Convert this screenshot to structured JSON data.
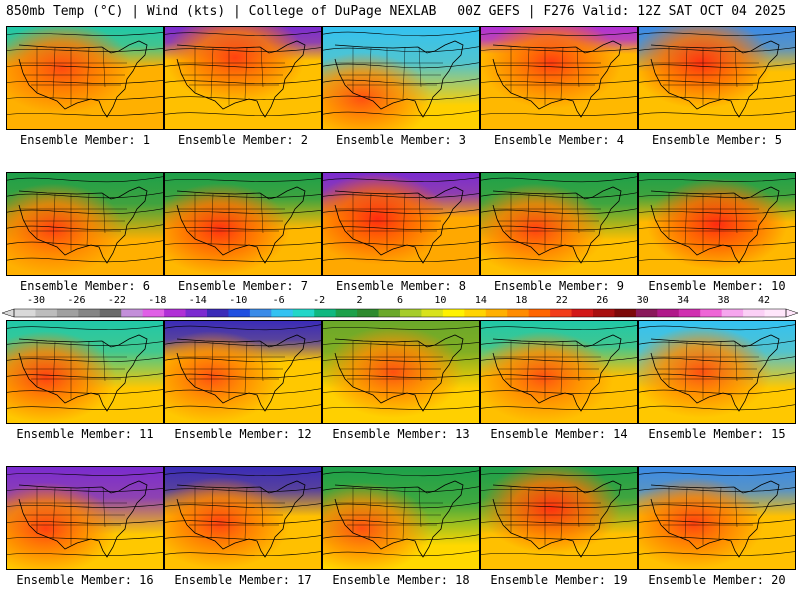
{
  "header": {
    "left": "850mb Temp (°C) | Wind (kts) | College of DuPage NEXLAB",
    "right": "00Z GEFS | F276 Valid: 12Z SAT OCT 04 2025"
  },
  "colorbar": {
    "labels": [
      "-30",
      "-26",
      "-22",
      "-18",
      "-14",
      "-10",
      "-6",
      "-2",
      "2",
      "6",
      "10",
      "14",
      "18",
      "22",
      "26",
      "30",
      "34",
      "38",
      "42"
    ],
    "colors": [
      "#d9d9d9",
      "#bdbdbd",
      "#a0a0a0",
      "#858585",
      "#6a6a6a",
      "#c38fd9",
      "#e060e6",
      "#b030d6",
      "#7b2bd0",
      "#3a2bb8",
      "#1f4fe0",
      "#3a8be8",
      "#33c2f2",
      "#22d6c8",
      "#10b880",
      "#1da04a",
      "#2e8a2e",
      "#6aa82a",
      "#a6cc2a",
      "#d8e21c",
      "#fff200",
      "#ffd400",
      "#ffb000",
      "#ff8c00",
      "#ff6600",
      "#f23c1a",
      "#d21818",
      "#a81010",
      "#7c0a0a",
      "#8a1a5a",
      "#b01a8a",
      "#d030b0",
      "#ee66d6",
      "#f6a6ee",
      "#fbd0f6",
      "#ffe6fb"
    ]
  },
  "panels": [
    {
      "label": "Ensemble Member: 1",
      "bg": "#ffb000",
      "north": "#20c8a8",
      "north_depth": 0.18,
      "hot1": "#ff4a10",
      "hot2": "#ff7a00",
      "hot_x": 0.35,
      "hot_y": 0.4
    },
    {
      "label": "Ensemble Member: 2",
      "bg": "#ffc000",
      "north": "#7a2bd0",
      "north_depth": 0.15,
      "hot1": "#ff4010",
      "hot2": "#ff7a00",
      "hot_x": 0.45,
      "hot_y": 0.3
    },
    {
      "label": "Ensemble Member: 3",
      "bg": "#ffd000",
      "north": "#33c2f2",
      "north_depth": 0.35,
      "hot1": "#ff5010",
      "hot2": "#ff8c00",
      "hot_x": 0.25,
      "hot_y": 0.7
    },
    {
      "label": "Ensemble Member: 4",
      "bg": "#ffb800",
      "north": "#b030d6",
      "north_depth": 0.12,
      "hot1": "#ff3a10",
      "hot2": "#ff7a00",
      "hot_x": 0.45,
      "hot_y": 0.35
    },
    {
      "label": "Ensemble Member: 5",
      "bg": "#ffc000",
      "north": "#3a8be8",
      "north_depth": 0.2,
      "hot1": "#ff3010",
      "hot2": "#ff7000",
      "hot_x": 0.4,
      "hot_y": 0.35
    },
    {
      "label": "Ensemble Member: 6",
      "bg": "#ffb000",
      "north": "#1da04a",
      "north_depth": 0.3,
      "hot1": "#ff4010",
      "hot2": "#ff8000",
      "hot_x": 0.3,
      "hot_y": 0.55
    },
    {
      "label": "Ensemble Member: 7",
      "bg": "#ffb800",
      "north": "#1da04a",
      "north_depth": 0.25,
      "hot1": "#ff3010",
      "hot2": "#ff7000",
      "hot_x": 0.35,
      "hot_y": 0.55
    },
    {
      "label": "Ensemble Member: 8",
      "bg": "#ffa800",
      "north": "#7a2bd0",
      "north_depth": 0.2,
      "hot1": "#ff2a10",
      "hot2": "#ff6600",
      "hot_x": 0.35,
      "hot_y": 0.45
    },
    {
      "label": "Ensemble Member: 9",
      "bg": "#ffc000",
      "north": "#1da04a",
      "north_depth": 0.3,
      "hot1": "#ff4010",
      "hot2": "#ff8000",
      "hot_x": 0.35,
      "hot_y": 0.55
    },
    {
      "label": "Ensemble Member: 10",
      "bg": "#ffb800",
      "north": "#1da04a",
      "north_depth": 0.22,
      "hot1": "#ff2a10",
      "hot2": "#ff6600",
      "hot_x": 0.5,
      "hot_y": 0.5
    },
    {
      "label": "Ensemble Member: 11",
      "bg": "#ffc800",
      "north": "#20c8a8",
      "north_depth": 0.3,
      "hot1": "#ff4010",
      "hot2": "#ff8000",
      "hot_x": 0.25,
      "hot_y": 0.55
    },
    {
      "label": "Ensemble Member: 12",
      "bg": "#ffc800",
      "north": "#3a2bb8",
      "north_depth": 0.18,
      "hot1": "#ff5010",
      "hot2": "#ff8c00",
      "hot_x": 0.3,
      "hot_y": 0.55
    },
    {
      "label": "Ensemble Member: 13",
      "bg": "#ffd000",
      "north": "#6aa82a",
      "north_depth": 0.3,
      "hot1": "#ff5010",
      "hot2": "#ff8c00",
      "hot_x": 0.45,
      "hot_y": 0.5
    },
    {
      "label": "Ensemble Member: 14",
      "bg": "#ffc000",
      "north": "#20c8a8",
      "north_depth": 0.25,
      "hot1": "#ff5010",
      "hot2": "#ff8c00",
      "hot_x": 0.4,
      "hot_y": 0.55
    },
    {
      "label": "Ensemble Member: 15",
      "bg": "#ffc800",
      "north": "#33c2f2",
      "north_depth": 0.3,
      "hot1": "#ff5010",
      "hot2": "#ff8c00",
      "hot_x": 0.4,
      "hot_y": 0.5
    },
    {
      "label": "Ensemble Member: 16",
      "bg": "#ffc800",
      "north": "#7a2bd0",
      "north_depth": 0.3,
      "hot1": "#ff4010",
      "hot2": "#ff8000",
      "hot_x": 0.25,
      "hot_y": 0.6
    },
    {
      "label": "Ensemble Member: 17",
      "bg": "#ffc000",
      "north": "#3a2bb8",
      "north_depth": 0.22,
      "hot1": "#ff4010",
      "hot2": "#ff8000",
      "hot_x": 0.35,
      "hot_y": 0.55
    },
    {
      "label": "Ensemble Member: 18",
      "bg": "#ffd800",
      "north": "#1da04a",
      "north_depth": 0.35,
      "hot1": "#ff5010",
      "hot2": "#ff8c00",
      "hot_x": 0.25,
      "hot_y": 0.6
    },
    {
      "label": "Ensemble Member: 19",
      "bg": "#ffc000",
      "north": "#1da04a",
      "north_depth": 0.3,
      "hot1": "#ff3010",
      "hot2": "#ff7000",
      "hot_x": 0.45,
      "hot_y": 0.4
    },
    {
      "label": "Ensemble Member: 20",
      "bg": "#ffc000",
      "north": "#3a8be8",
      "north_depth": 0.22,
      "hot1": "#ff4010",
      "hot2": "#ff8000",
      "hot_x": 0.35,
      "hot_y": 0.55
    }
  ]
}
